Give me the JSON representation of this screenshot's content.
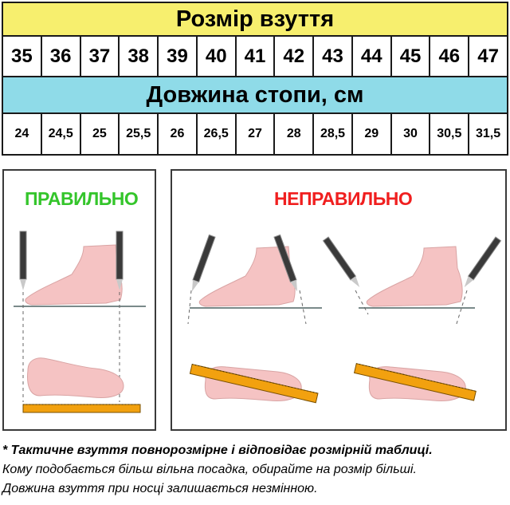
{
  "table": {
    "title": "Розмір взуття",
    "sizes": [
      "35",
      "36",
      "37",
      "38",
      "39",
      "40",
      "41",
      "42",
      "43",
      "44",
      "45",
      "46",
      "47"
    ],
    "length_title": "Довжина стопи, см",
    "lengths": [
      "24",
      "24,5",
      "25",
      "25,5",
      "26",
      "26,5",
      "27",
      "28",
      "28,5",
      "29",
      "30",
      "30,5",
      "31,5"
    ]
  },
  "panels": {
    "correct_label": "ПРАВИЛЬНО",
    "incorrect_label": "НЕПРАВИЛЬНО"
  },
  "notes": {
    "line1": "* Тактичне взуття повнорозмірне і відповідає розмірній таблиці.",
    "line2": "Кому подобається більш вільна посадка, обирайте на розмір більші.",
    "line3": "Довжина взуття при носці залишається незмінною."
  },
  "colors": {
    "title_bg": "#f7ef6e",
    "length_bg": "#8fdbe8",
    "correct": "#34c52b",
    "incorrect": "#f01f1f",
    "foot": "#f5c3c3",
    "ruler": "#f2a10f"
  }
}
